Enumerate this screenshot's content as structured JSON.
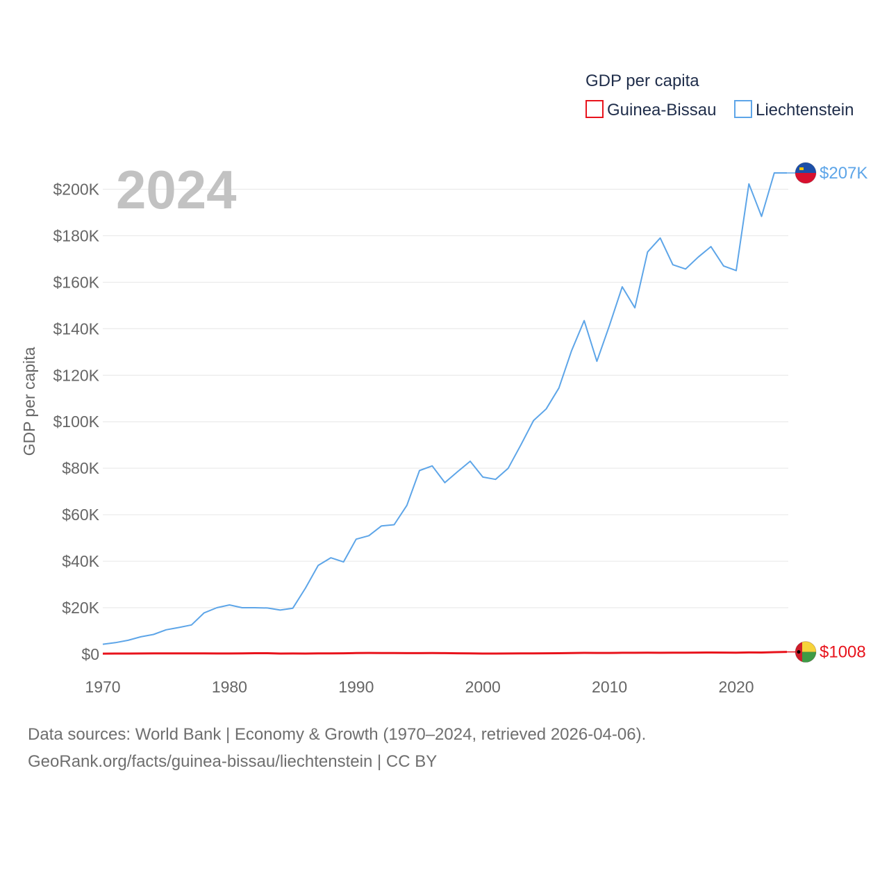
{
  "chart_data": {
    "type": "line",
    "year_label": "2024",
    "ylabel": "GDP per capita",
    "xlim": [
      1970,
      2024
    ],
    "ylim": [
      0,
      210000
    ],
    "y_ticks": [
      {
        "value": 0,
        "label": "$0"
      },
      {
        "value": 20000,
        "label": "$20K"
      },
      {
        "value": 40000,
        "label": "$40K"
      },
      {
        "value": 60000,
        "label": "$60K"
      },
      {
        "value": 80000,
        "label": "$80K"
      },
      {
        "value": 100000,
        "label": "$100K"
      },
      {
        "value": 120000,
        "label": "$120K"
      },
      {
        "value": 140000,
        "label": "$140K"
      },
      {
        "value": 160000,
        "label": "$160K"
      },
      {
        "value": 180000,
        "label": "$180K"
      },
      {
        "value": 200000,
        "label": "$200K"
      }
    ],
    "x_ticks": [
      {
        "value": 1970,
        "label": "1970"
      },
      {
        "value": 1980,
        "label": "1980"
      },
      {
        "value": 1990,
        "label": "1990"
      },
      {
        "value": 2000,
        "label": "2000"
      },
      {
        "value": 2010,
        "label": "2010"
      },
      {
        "value": 2020,
        "label": "2020"
      }
    ],
    "legend": {
      "title": "GDP per capita",
      "position": "top-right"
    },
    "x": [
      1970,
      1971,
      1972,
      1973,
      1974,
      1975,
      1976,
      1977,
      1978,
      1979,
      1980,
      1981,
      1982,
      1983,
      1984,
      1985,
      1986,
      1987,
      1988,
      1989,
      1990,
      1991,
      1992,
      1993,
      1994,
      1995,
      1996,
      1997,
      1998,
      1999,
      2000,
      2001,
      2002,
      2003,
      2004,
      2005,
      2006,
      2007,
      2008,
      2009,
      2010,
      2011,
      2012,
      2013,
      2014,
      2015,
      2016,
      2017,
      2018,
      2019,
      2020,
      2021,
      2022,
      2023,
      2024
    ],
    "series": [
      {
        "name": "Liechtenstein",
        "color": "#5da5e8",
        "end_label": "$207K",
        "flag": "liechtenstein-flag",
        "values": [
          4300,
          5000,
          6000,
          7500,
          8500,
          10500,
          11500,
          12600,
          17800,
          20000,
          21200,
          20000,
          20000,
          19900,
          19000,
          19800,
          28500,
          38200,
          41500,
          39700,
          49500,
          51000,
          55200,
          55700,
          64000,
          79000,
          81000,
          73800,
          78500,
          83000,
          76200,
          75200,
          80000,
          90000,
          100500,
          105500,
          114500,
          130500,
          143500,
          126000,
          141500,
          158000,
          149000,
          173000,
          179000,
          167500,
          165700,
          170800,
          175300,
          167000,
          165000,
          202300,
          188300,
          207000,
          207000
        ]
      },
      {
        "name": "Guinea-Bissau",
        "color": "#e8131c",
        "end_label": "$1008",
        "flag": "guinea-bissau-flag",
        "values": [
          280,
          300,
          310,
          330,
          360,
          380,
          370,
          360,
          350,
          340,
          330,
          400,
          450,
          440,
          300,
          320,
          310,
          380,
          370,
          420,
          520,
          560,
          540,
          500,
          490,
          470,
          510,
          480,
          430,
          380,
          310,
          300,
          320,
          360,
          400,
          420,
          450,
          500,
          600,
          580,
          560,
          640,
          620,
          650,
          640,
          660,
          680,
          710,
          760,
          720,
          700,
          780,
          760,
          900,
          1008
        ]
      }
    ]
  },
  "source": {
    "line1": "Data sources: World Bank | Economy & Growth (1970–2024, retrieved 2026-04-06).",
    "line2": "GeoRank.org/facts/guinea-bissau/liechtenstein | CC BY"
  }
}
